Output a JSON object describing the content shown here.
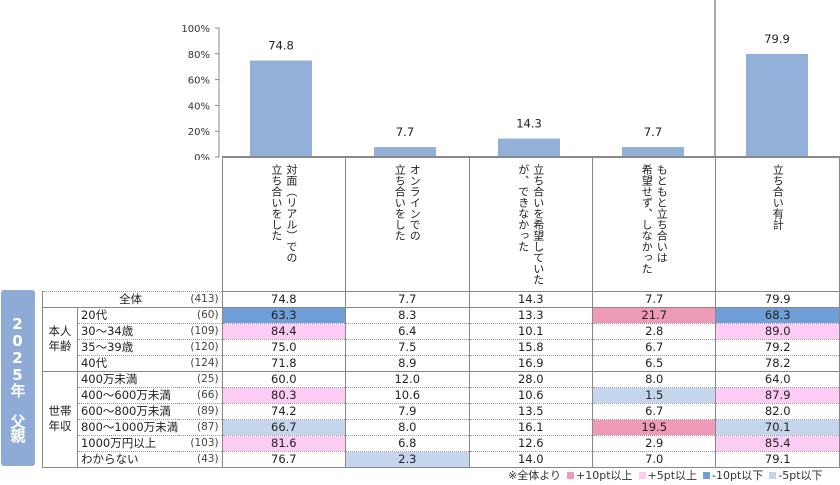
{
  "badge": "2025年 父親",
  "chart_data": {
    "type": "bar",
    "categories": [
      "対面（リアル）での立ち合いをした",
      "オンラインでの立ち合いをした",
      "立ち合いを希望していたが、できなかった",
      "もともと立ち合いは希望せず、しなかった",
      "立ち合い有計"
    ],
    "values": [
      74.8,
      7.7,
      14.3,
      7.7,
      79.9
    ],
    "ylim": [
      0,
      100
    ],
    "yticks": [
      "0%",
      "20%",
      "40%",
      "60%",
      "80%",
      "100%"
    ],
    "bar_color": "#93b0d8"
  },
  "headers": [
    [
      "対面（リアル）での",
      "立ち合いをした"
    ],
    [
      "オンラインでの",
      "立ち合いをした"
    ],
    [
      "立ち合いを希望していた",
      "が、できなかった"
    ],
    [
      "もともと立ち合いは",
      "希望せず、しなかった"
    ],
    [
      "立ち合い有計"
    ]
  ],
  "groups": [
    {
      "label": "本人年齢",
      "rows": [
        1,
        2,
        3,
        4
      ]
    },
    {
      "label": "世帯年収",
      "rows": [
        5,
        6,
        7,
        8,
        9,
        10
      ]
    }
  ],
  "rows": [
    {
      "label": "全体",
      "n": "(413)",
      "values": [
        "74.8",
        "7.7",
        "14.3",
        "7.7",
        "79.9"
      ],
      "hl": [
        "",
        "",
        "",
        "",
        ""
      ]
    },
    {
      "label": "20代",
      "n": "(60)",
      "values": [
        "63.3",
        "8.3",
        "13.3",
        "21.7",
        "68.3"
      ],
      "hl": [
        "m10",
        "",
        "",
        "p10",
        "m10"
      ]
    },
    {
      "label": "30～34歳",
      "n": "(109)",
      "values": [
        "84.4",
        "6.4",
        "10.1",
        "2.8",
        "89.0"
      ],
      "hl": [
        "p5",
        "",
        "",
        "",
        "p5"
      ]
    },
    {
      "label": "35～39歳",
      "n": "(120)",
      "values": [
        "75.0",
        "7.5",
        "15.8",
        "6.7",
        "79.2"
      ],
      "hl": [
        "",
        "",
        "",
        "",
        ""
      ]
    },
    {
      "label": "40代",
      "n": "(124)",
      "values": [
        "71.8",
        "8.9",
        "16.9",
        "6.5",
        "78.2"
      ],
      "hl": [
        "",
        "",
        "",
        "",
        ""
      ]
    },
    {
      "label": "400万未満",
      "n": "(25)",
      "values": [
        "60.0",
        "12.0",
        "28.0",
        "8.0",
        "64.0"
      ],
      "hl": [
        "",
        "",
        "",
        "",
        ""
      ]
    },
    {
      "label": "400～600万未満",
      "n": "(66)",
      "values": [
        "80.3",
        "10.6",
        "10.6",
        "1.5",
        "87.9"
      ],
      "hl": [
        "p5",
        "",
        "",
        "m5",
        "p5"
      ]
    },
    {
      "label": "600～800万未満",
      "n": "(89)",
      "values": [
        "74.2",
        "7.9",
        "13.5",
        "6.7",
        "82.0"
      ],
      "hl": [
        "",
        "",
        "",
        "",
        ""
      ]
    },
    {
      "label": "800～1000万未満",
      "n": "(87)",
      "values": [
        "66.7",
        "8.0",
        "16.1",
        "19.5",
        "70.1"
      ],
      "hl": [
        "m5",
        "",
        "",
        "p10",
        "m5"
      ]
    },
    {
      "label": "1000万円以上",
      "n": "(103)",
      "values": [
        "81.6",
        "6.8",
        "12.6",
        "2.9",
        "85.4"
      ],
      "hl": [
        "p5",
        "",
        "",
        "",
        "p5"
      ]
    },
    {
      "label": "わからない",
      "n": "(43)",
      "values": [
        "76.7",
        "2.3",
        "14.0",
        "7.0",
        "79.1"
      ],
      "hl": [
        "",
        "m5",
        "",
        "",
        ""
      ]
    }
  ],
  "legend": {
    "prefix": "※全体より",
    "items": [
      {
        "label": "+10pt以上",
        "color": "#ee9ab8"
      },
      {
        "label": "+5pt以上",
        "color": "#fdccf5"
      },
      {
        "label": "-10pt以下",
        "color": "#6f9ed8"
      },
      {
        "label": "-5pt以下",
        "color": "#c5d6ec"
      }
    ]
  },
  "hl_colors": {
    "p10": "#ee9ab8",
    "p5": "#fdccf5",
    "m10": "#6f9ed8",
    "m5": "#c5d6ec"
  }
}
